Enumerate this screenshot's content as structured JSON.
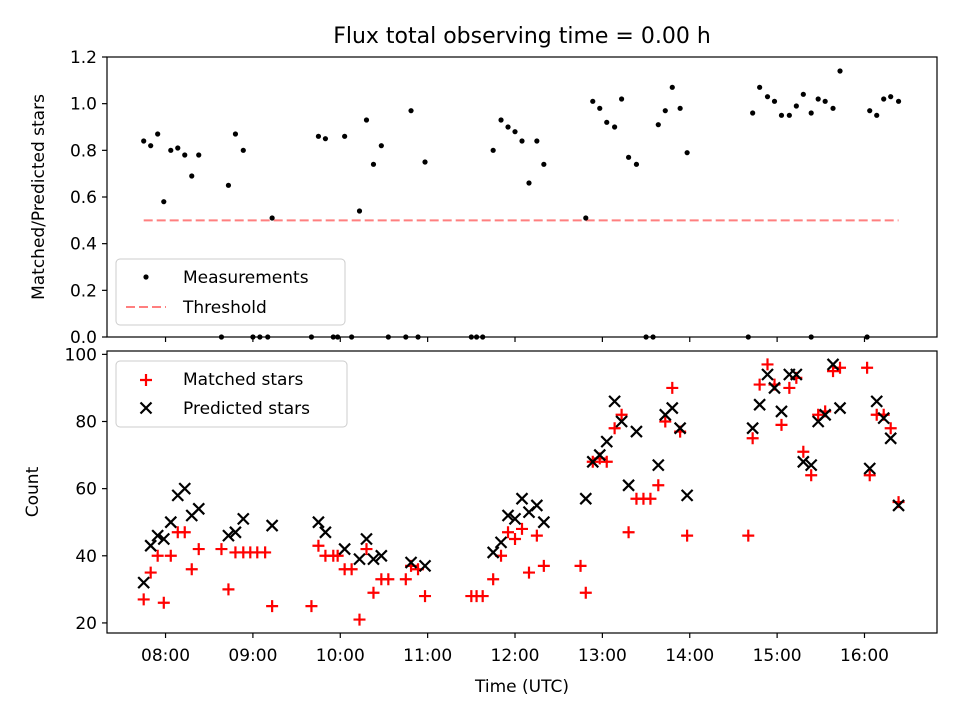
{
  "title": "Flux total observing time = 0.00 h",
  "chart_data": [
    {
      "type": "scatter",
      "ylabel": "Matched/Predicted stars",
      "xlim": [
        7.33,
        16.83
      ],
      "ylim": [
        0,
        1.2
      ],
      "yticks": [
        0,
        0.2,
        0.4,
        0.6,
        0.8,
        1.0,
        1.2
      ],
      "ytick_labels": [
        "0.0",
        "0.2",
        "0.4",
        "0.6",
        "0.8",
        "1.0",
        "1.2"
      ],
      "legend_position": "lower-left",
      "series": [
        {
          "name": "Measurements",
          "marker": "dot",
          "color": "#000000",
          "points": [
            [
              7.75,
              0.84
            ],
            [
              7.83,
              0.82
            ],
            [
              7.91,
              0.87
            ],
            [
              7.98,
              0.58
            ],
            [
              8.06,
              0.8
            ],
            [
              8.14,
              0.81
            ],
            [
              8.22,
              0.78
            ],
            [
              8.3,
              0.69
            ],
            [
              8.38,
              0.78
            ],
            [
              8.72,
              0.65
            ],
            [
              8.8,
              0.87
            ],
            [
              8.89,
              0.8
            ],
            [
              9.22,
              0.51
            ],
            [
              9.75,
              0.86
            ],
            [
              9.83,
              0.85
            ],
            [
              10.05,
              0.86
            ],
            [
              10.22,
              0.54
            ],
            [
              10.3,
              0.93
            ],
            [
              10.38,
              0.74
            ],
            [
              10.47,
              0.82
            ],
            [
              10.81,
              0.97
            ],
            [
              10.97,
              0.75
            ],
            [
              11.75,
              0.8
            ],
            [
              11.84,
              0.93
            ],
            [
              11.92,
              0.9
            ],
            [
              12.0,
              0.88
            ],
            [
              12.08,
              0.84
            ],
            [
              12.16,
              0.66
            ],
            [
              12.25,
              0.84
            ],
            [
              12.33,
              0.74
            ],
            [
              12.81,
              0.51
            ],
            [
              12.89,
              1.01
            ],
            [
              12.97,
              0.98
            ],
            [
              13.05,
              0.92
            ],
            [
              13.14,
              0.9
            ],
            [
              13.22,
              1.02
            ],
            [
              13.3,
              0.77
            ],
            [
              13.39,
              0.74
            ],
            [
              13.64,
              0.91
            ],
            [
              13.72,
              0.97
            ],
            [
              13.8,
              1.07
            ],
            [
              13.89,
              0.98
            ],
            [
              13.97,
              0.79
            ],
            [
              14.72,
              0.96
            ],
            [
              14.8,
              1.07
            ],
            [
              14.89,
              1.03
            ],
            [
              14.97,
              1.01
            ],
            [
              15.05,
              0.95
            ],
            [
              15.14,
              0.95
            ],
            [
              15.22,
              0.99
            ],
            [
              15.3,
              1.04
            ],
            [
              15.39,
              0.96
            ],
            [
              15.47,
              1.02
            ],
            [
              15.55,
              1.01
            ],
            [
              15.64,
              0.98
            ],
            [
              15.72,
              1.14
            ],
            [
              16.06,
              0.97
            ],
            [
              16.14,
              0.95
            ],
            [
              16.22,
              1.02
            ],
            [
              16.3,
              1.03
            ],
            [
              16.39,
              1.01
            ],
            [
              8.64,
              0
            ],
            [
              9.0,
              0
            ],
            [
              9.08,
              0
            ],
            [
              9.17,
              0
            ],
            [
              9.67,
              0
            ],
            [
              9.92,
              0
            ],
            [
              9.97,
              0
            ],
            [
              10.13,
              0
            ],
            [
              10.55,
              0
            ],
            [
              10.75,
              0
            ],
            [
              10.89,
              0
            ],
            [
              11.5,
              0
            ],
            [
              11.56,
              0
            ],
            [
              11.63,
              0
            ],
            [
              13.5,
              0
            ],
            [
              13.58,
              0
            ],
            [
              14.67,
              0
            ],
            [
              15.39,
              0
            ],
            [
              16.03,
              0
            ]
          ]
        },
        {
          "name": "Threshold",
          "marker": "dashed-line",
          "color": "#ff7f7f",
          "x": [
            7.75,
            16.39
          ],
          "y": [
            0.5,
            0.5
          ]
        }
      ]
    },
    {
      "type": "scatter",
      "xlabel": "Time (UTC)",
      "ylabel": "Count",
      "xlim": [
        7.33,
        16.83
      ],
      "ylim": [
        17,
        101
      ],
      "xticks": [
        8,
        9,
        10,
        11,
        12,
        13,
        14,
        15,
        16
      ],
      "xtick_labels": [
        "08:00",
        "09:00",
        "10:00",
        "11:00",
        "12:00",
        "13:00",
        "14:00",
        "15:00",
        "16:00"
      ],
      "yticks": [
        20,
        40,
        60,
        80,
        100
      ],
      "ytick_labels": [
        "20",
        "40",
        "60",
        "80",
        "100"
      ],
      "legend_position": "upper-left",
      "series": [
        {
          "name": "Matched stars",
          "marker": "plus",
          "color": "#ff0000",
          "points": [
            [
              7.75,
              27
            ],
            [
              7.83,
              35
            ],
            [
              7.91,
              40
            ],
            [
              7.98,
              26
            ],
            [
              8.06,
              40
            ],
            [
              8.14,
              47
            ],
            [
              8.22,
              47
            ],
            [
              8.3,
              36
            ],
            [
              8.38,
              42
            ],
            [
              8.64,
              42
            ],
            [
              8.72,
              30
            ],
            [
              8.8,
              41
            ],
            [
              8.89,
              41
            ],
            [
              8.97,
              41
            ],
            [
              9.05,
              41
            ],
            [
              9.14,
              41
            ],
            [
              9.22,
              25
            ],
            [
              9.67,
              25
            ],
            [
              9.75,
              43
            ],
            [
              9.83,
              40
            ],
            [
              9.92,
              40
            ],
            [
              9.97,
              40
            ],
            [
              10.05,
              36
            ],
            [
              10.13,
              36
            ],
            [
              10.22,
              21
            ],
            [
              10.3,
              42
            ],
            [
              10.38,
              29
            ],
            [
              10.47,
              33
            ],
            [
              10.55,
              33
            ],
            [
              10.75,
              33
            ],
            [
              10.81,
              37
            ],
            [
              10.89,
              36
            ],
            [
              10.97,
              28
            ],
            [
              11.5,
              28
            ],
            [
              11.56,
              28
            ],
            [
              11.63,
              28
            ],
            [
              11.75,
              33
            ],
            [
              11.84,
              40
            ],
            [
              11.92,
              47
            ],
            [
              12.0,
              45
            ],
            [
              12.08,
              48
            ],
            [
              12.16,
              35
            ],
            [
              12.25,
              46
            ],
            [
              12.33,
              37
            ],
            [
              12.75,
              37
            ],
            [
              12.81,
              29
            ],
            [
              12.89,
              68
            ],
            [
              12.97,
              69
            ],
            [
              13.05,
              68
            ],
            [
              13.14,
              78
            ],
            [
              13.22,
              82
            ],
            [
              13.3,
              47
            ],
            [
              13.39,
              57
            ],
            [
              13.47,
              57
            ],
            [
              13.55,
              57
            ],
            [
              13.64,
              61
            ],
            [
              13.72,
              80
            ],
            [
              13.8,
              90
            ],
            [
              13.89,
              77
            ],
            [
              13.97,
              46
            ],
            [
              14.67,
              46
            ],
            [
              14.72,
              75
            ],
            [
              14.8,
              91
            ],
            [
              14.89,
              97
            ],
            [
              14.97,
              91
            ],
            [
              15.05,
              79
            ],
            [
              15.14,
              90
            ],
            [
              15.22,
              93
            ],
            [
              15.3,
              71
            ],
            [
              15.39,
              64
            ],
            [
              15.47,
              82
            ],
            [
              15.55,
              83
            ],
            [
              15.64,
              95
            ],
            [
              15.72,
              96
            ],
            [
              16.03,
              96
            ],
            [
              16.06,
              64
            ],
            [
              16.14,
              82
            ],
            [
              16.22,
              82
            ],
            [
              16.3,
              78
            ],
            [
              16.39,
              56
            ]
          ]
        },
        {
          "name": "Predicted stars",
          "marker": "x",
          "color": "#000000",
          "points": [
            [
              7.75,
              32
            ],
            [
              7.83,
              43
            ],
            [
              7.91,
              46
            ],
            [
              7.98,
              45
            ],
            [
              8.06,
              50
            ],
            [
              8.14,
              58
            ],
            [
              8.22,
              60
            ],
            [
              8.3,
              52
            ],
            [
              8.38,
              54
            ],
            [
              8.72,
              46
            ],
            [
              8.8,
              47
            ],
            [
              8.89,
              51
            ],
            [
              9.22,
              49
            ],
            [
              9.75,
              50
            ],
            [
              9.83,
              47
            ],
            [
              10.05,
              42
            ],
            [
              10.22,
              39
            ],
            [
              10.3,
              45
            ],
            [
              10.38,
              39
            ],
            [
              10.47,
              40
            ],
            [
              10.81,
              38
            ],
            [
              10.97,
              37
            ],
            [
              11.75,
              41
            ],
            [
              11.84,
              44
            ],
            [
              11.92,
              52
            ],
            [
              12.0,
              51
            ],
            [
              12.08,
              57
            ],
            [
              12.16,
              53
            ],
            [
              12.25,
              55
            ],
            [
              12.33,
              50
            ],
            [
              12.81,
              57
            ],
            [
              12.89,
              68
            ],
            [
              12.97,
              70
            ],
            [
              13.05,
              74
            ],
            [
              13.14,
              86
            ],
            [
              13.22,
              80
            ],
            [
              13.3,
              61
            ],
            [
              13.39,
              77
            ],
            [
              13.64,
              67
            ],
            [
              13.72,
              82
            ],
            [
              13.8,
              84
            ],
            [
              13.89,
              78
            ],
            [
              13.97,
              58
            ],
            [
              14.72,
              78
            ],
            [
              14.8,
              85
            ],
            [
              14.89,
              94
            ],
            [
              14.97,
              90
            ],
            [
              15.05,
              83
            ],
            [
              15.14,
              94
            ],
            [
              15.22,
              94
            ],
            [
              15.3,
              68
            ],
            [
              15.39,
              67
            ],
            [
              15.47,
              80
            ],
            [
              15.55,
              82
            ],
            [
              15.64,
              97
            ],
            [
              15.72,
              84
            ],
            [
              16.06,
              66
            ],
            [
              16.14,
              86
            ],
            [
              16.22,
              81
            ],
            [
              16.3,
              75
            ],
            [
              16.39,
              55
            ]
          ]
        }
      ]
    }
  ]
}
